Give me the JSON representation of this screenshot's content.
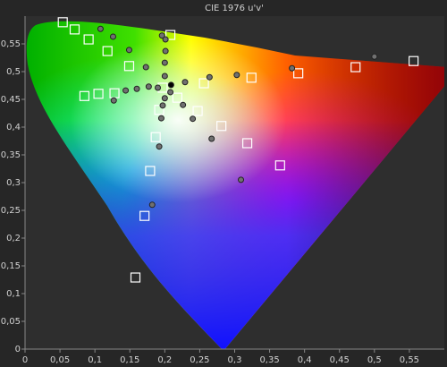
{
  "chart_data": {
    "type": "scatter",
    "title": "CIE 1976 u'v'",
    "xlim": [
      0,
      0.6
    ],
    "ylim": [
      0,
      0.6
    ],
    "xticks": [
      0,
      {
        "value": 0.05,
        "label": "0,05"
      },
      {
        "value": 0.1,
        "label": "0,1"
      },
      {
        "value": 0.15,
        "label": "0,15"
      },
      {
        "value": 0.2,
        "label": "0,2"
      },
      {
        "value": 0.25,
        "label": "0,25"
      },
      {
        "value": 0.3,
        "label": "0,3"
      },
      {
        "value": 0.35,
        "label": "0,35"
      },
      {
        "value": 0.4,
        "label": "0,4"
      },
      {
        "value": 0.45,
        "label": "0,45"
      },
      {
        "value": 0.5,
        "label": "0,5"
      },
      {
        "value": 0.55,
        "label": "0,55"
      }
    ],
    "yticks": [
      0,
      {
        "value": 0.05,
        "label": "0,05"
      },
      {
        "value": 0.1,
        "label": "0,1"
      },
      {
        "value": 0.15,
        "label": "0,15"
      },
      {
        "value": 0.2,
        "label": "0,2"
      },
      {
        "value": 0.25,
        "label": "0,25"
      },
      {
        "value": 0.3,
        "label": "0,3"
      },
      {
        "value": 0.35,
        "label": "0,35"
      },
      {
        "value": 0.4,
        "label": "0,4"
      },
      {
        "value": 0.45,
        "label": "0,45"
      },
      {
        "value": 0.5,
        "label": "0,5"
      },
      {
        "value": 0.55,
        "label": "0,55"
      }
    ],
    "series": [
      {
        "marker": "square",
        "color": "#ffffff",
        "x": [
          0.054,
          0.071,
          0.091,
          0.118,
          0.149,
          0.208,
          0.085,
          0.105,
          0.128,
          0.197,
          0.218,
          0.256,
          0.324,
          0.391,
          0.473,
          0.556,
          0.247,
          0.192,
          0.281,
          0.187,
          0.318,
          0.365,
          0.179,
          0.171,
          0.158
        ],
        "y": [
          0.589,
          0.576,
          0.558,
          0.537,
          0.51,
          0.566,
          0.456,
          0.46,
          0.461,
          0.471,
          0.453,
          0.479,
          0.489,
          0.497,
          0.508,
          0.519,
          0.429,
          0.431,
          0.402,
          0.382,
          0.371,
          0.331,
          0.321,
          0.24,
          0.129
        ]
      },
      {
        "marker": "circle",
        "color": "#707070",
        "x": [
          0.108,
          0.126,
          0.149,
          0.173,
          0.196,
          0.201,
          0.201,
          0.2,
          0.2,
          0.127,
          0.144,
          0.16,
          0.177,
          0.19,
          0.229,
          0.264,
          0.303,
          0.382,
          0.5,
          0.2,
          0.208,
          0.226,
          0.195,
          0.24,
          0.267,
          0.192,
          0.309,
          0.182,
          0.197
        ],
        "y": [
          0.577,
          0.563,
          0.539,
          0.508,
          0.565,
          0.558,
          0.537,
          0.516,
          0.492,
          0.448,
          0.466,
          0.469,
          0.473,
          0.471,
          0.481,
          0.49,
          0.494,
          0.506,
          0.527,
          0.452,
          0.463,
          0.44,
          0.416,
          0.415,
          0.379,
          0.365,
          0.305,
          0.26,
          0.439
        ]
      },
      {
        "marker": "circle",
        "color": "#000000",
        "x": [
          0.209
        ],
        "y": [
          0.476
        ]
      }
    ]
  }
}
